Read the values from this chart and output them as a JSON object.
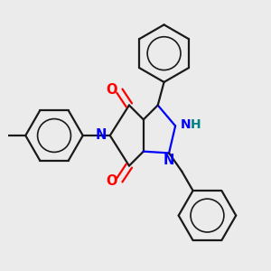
{
  "bg_color": "#ebebeb",
  "bond_color": "#1a1a1a",
  "N_color": "#0000ff",
  "O_color": "#ff0000",
  "H_color": "#008080",
  "line_width": 1.6,
  "figsize": [
    3.0,
    3.0
  ],
  "dpi": 100,
  "xlim": [
    -1.6,
    1.6
  ],
  "ylim": [
    -1.7,
    1.7
  ]
}
